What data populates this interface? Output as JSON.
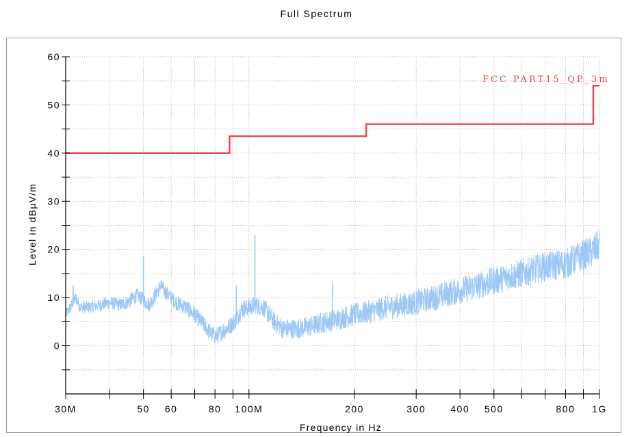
{
  "chart_data": {
    "type": "line",
    "title": "Full Spectrum",
    "xlabel": "Frequency in Hz",
    "ylabel": "Level in dBµV/m",
    "x_scale": "log",
    "xlim": [
      30000000,
      1000000000
    ],
    "ylim": [
      -10,
      60
    ],
    "x_ticks": [
      {
        "value": 30000000,
        "label": "30M"
      },
      {
        "value": 50000000,
        "label": "50"
      },
      {
        "value": 60000000,
        "label": "60"
      },
      {
        "value": 80000000,
        "label": "80"
      },
      {
        "value": 100000000,
        "label": "100M"
      },
      {
        "value": 200000000,
        "label": "200"
      },
      {
        "value": 300000000,
        "label": "300"
      },
      {
        "value": 400000000,
        "label": "400"
      },
      {
        "value": 500000000,
        "label": "500"
      },
      {
        "value": 800000000,
        "label": "800"
      },
      {
        "value": 1000000000,
        "label": "1G"
      }
    ],
    "y_ticks": [
      {
        "value": 0,
        "label": "0"
      },
      {
        "value": 10,
        "label": "10"
      },
      {
        "value": 20,
        "label": "20"
      },
      {
        "value": 30,
        "label": "30"
      },
      {
        "value": 40,
        "label": "40"
      },
      {
        "value": 50,
        "label": "50"
      },
      {
        "value": 60,
        "label": "60"
      }
    ],
    "grid": true,
    "series": [
      {
        "name": "FCC PART15_QP_3m",
        "kind": "limit",
        "color": "#e8464b",
        "x": [
          30000000,
          88000000,
          88000000,
          216000000,
          216000000,
          960000000,
          960000000,
          1000000000
        ],
        "y": [
          40,
          40,
          43.5,
          43.5,
          46,
          46,
          54,
          54
        ]
      },
      {
        "kind": "measurement",
        "color": "#9dc8f4",
        "x": [
          30000000,
          31000000,
          32000000,
          33000000,
          35000000,
          38000000,
          40000000,
          43000000,
          45000000,
          48000000,
          50000000,
          52000000,
          54000000,
          56000000,
          58000000,
          62000000,
          66000000,
          70000000,
          74000000,
          78000000,
          81000000,
          84000000,
          88000000,
          92000000,
          95000000,
          100000000,
          105000000,
          110000000,
          118000000,
          125000000,
          135000000,
          150000000,
          165000000,
          180000000,
          200000000,
          220000000,
          250000000,
          280000000,
          320000000,
          360000000,
          400000000,
          450000000,
          500000000,
          560000000,
          630000000,
          700000000,
          800000000,
          880000000,
          950000000,
          1000000000
        ],
        "y": [
          6.5,
          8,
          10,
          8,
          8,
          8.5,
          9,
          8.5,
          9,
          10.5,
          9.5,
          8.5,
          10.5,
          12.5,
          11,
          9,
          8,
          6.5,
          4.5,
          2.5,
          2,
          3,
          4,
          5.5,
          7.5,
          8,
          8.5,
          8,
          5,
          3.5,
          3.5,
          4,
          5,
          5.5,
          6.5,
          7,
          8,
          8.5,
          9.5,
          10.5,
          11.5,
          12.5,
          13.5,
          14.5,
          15.5,
          16.5,
          17,
          18.5,
          19.5,
          21
        ],
        "spikes": [
          {
            "x": 31500000,
            "y": 12.5
          },
          {
            "x": 50000000,
            "y": 18.5
          },
          {
            "x": 92000000,
            "y": 12.5
          },
          {
            "x": 104000000,
            "y": 23
          },
          {
            "x": 173000000,
            "y": 13
          }
        ]
      }
    ]
  }
}
